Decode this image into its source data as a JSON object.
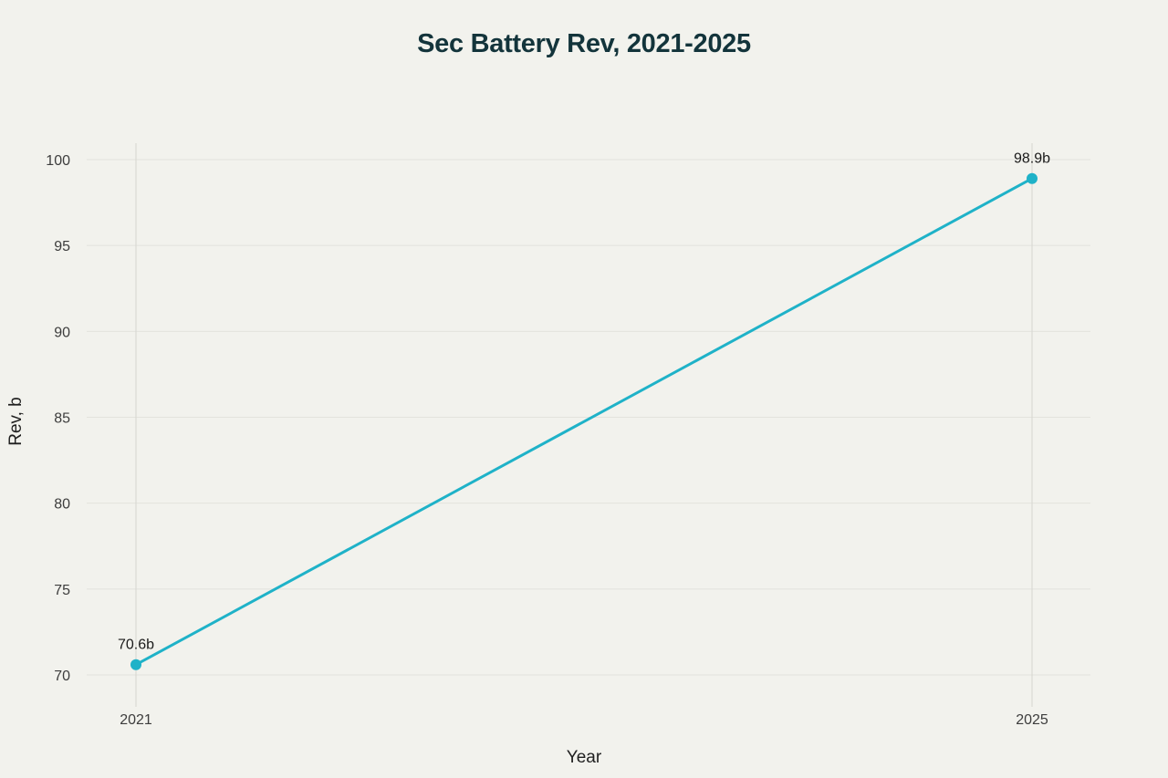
{
  "chart_data": {
    "type": "line",
    "title": "Sec Battery Rev, 2021-2025",
    "xlabel": "Year",
    "ylabel": "Rev, b",
    "x": [
      "2021",
      "2025"
    ],
    "series": [
      {
        "values": [
          70.6,
          98.9
        ],
        "data_labels": [
          "70.6b",
          "98.9b"
        ]
      }
    ],
    "yticks": [
      70,
      75,
      80,
      85,
      90,
      95,
      100
    ],
    "ylim": [
      68.2,
      101
    ],
    "grid": true,
    "colors": {
      "line": "#1fb2c8",
      "grid": "#e3e3dd",
      "axis_text": "#3d3d3d",
      "title": "#13343b",
      "background": "#f2f2ed"
    }
  }
}
